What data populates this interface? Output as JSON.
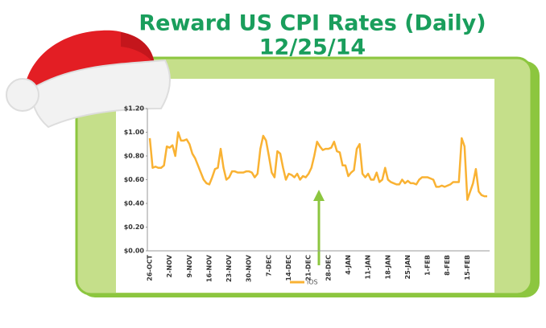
{
  "chart_data": {
    "type": "line",
    "title": "Reward US CPI Rates (Daily)",
    "subtitle": "12/25/14",
    "categories": [
      "26-OCT",
      null,
      null,
      null,
      null,
      null,
      null,
      "2-NOV",
      null,
      null,
      null,
      null,
      null,
      null,
      "9-NOV",
      null,
      null,
      null,
      null,
      null,
      null,
      "16-NOV",
      null,
      null,
      null,
      null,
      null,
      null,
      "23-NOV",
      null,
      null,
      null,
      null,
      null,
      null,
      "30-NOV",
      null,
      null,
      null,
      null,
      null,
      null,
      "7-DEC",
      null,
      null,
      null,
      null,
      null,
      null,
      "14-DEC",
      null,
      null,
      null,
      null,
      null,
      null,
      "21-DEC",
      null,
      null,
      null,
      null,
      null,
      null,
      "28-DEC",
      null,
      null,
      null,
      null,
      null,
      null,
      "4-JAN",
      null,
      null,
      null,
      null,
      null,
      null,
      "11-JAN",
      null,
      null,
      null,
      null,
      null,
      null,
      "18-JAN",
      null,
      null,
      null,
      null,
      null,
      null,
      "25-JAN",
      null,
      null,
      null,
      null,
      null,
      null,
      "1-FEB",
      null,
      null,
      null,
      null,
      null,
      null,
      "8-FEB",
      null,
      null,
      null,
      null,
      null,
      null,
      "15-FEB",
      null,
      null,
      null,
      null,
      null,
      null,
      null
    ],
    "series": [
      {
        "name": "iOS",
        "color": "#f9b233",
        "values": [
          0.95,
          0.7,
          0.71,
          0.7,
          0.7,
          0.72,
          0.88,
          0.87,
          0.89,
          0.8,
          1.0,
          0.93,
          0.93,
          0.94,
          0.9,
          0.82,
          0.78,
          0.72,
          0.66,
          0.6,
          0.57,
          0.56,
          0.62,
          0.69,
          0.7,
          0.86,
          0.7,
          0.6,
          0.62,
          0.67,
          0.67,
          0.66,
          0.66,
          0.66,
          0.67,
          0.67,
          0.66,
          0.62,
          0.65,
          0.86,
          0.97,
          0.93,
          0.8,
          0.66,
          0.62,
          0.84,
          0.82,
          0.7,
          0.6,
          0.65,
          0.64,
          0.62,
          0.65,
          0.6,
          0.63,
          0.62,
          0.65,
          0.7,
          0.8,
          0.92,
          0.88,
          0.85,
          0.86,
          0.86,
          0.87,
          0.92,
          0.84,
          0.83,
          0.72,
          0.72,
          0.63,
          0.66,
          0.68,
          0.86,
          0.9,
          0.65,
          0.62,
          0.65,
          0.6,
          0.6,
          0.66,
          0.58,
          0.6,
          0.7,
          0.6,
          0.58,
          0.57,
          0.56,
          0.56,
          0.6,
          0.57,
          0.59,
          0.57,
          0.57,
          0.56,
          0.6,
          0.62,
          0.62,
          0.62,
          0.61,
          0.6,
          0.54,
          0.54,
          0.55,
          0.54,
          0.55,
          0.56,
          0.58,
          0.58,
          0.58,
          0.95,
          0.88,
          0.43,
          0.5,
          0.57,
          0.69,
          0.5,
          0.47,
          0.46,
          0.46
        ]
      }
    ],
    "ylim": [
      0,
      1.2
    ],
    "yticks": [
      {
        "value": 0,
        "label": "$0.00"
      },
      {
        "value": 0.2,
        "label": "$0.20"
      },
      {
        "value": 0.4,
        "label": "$0.40"
      },
      {
        "value": 0.6,
        "label": "$0.60"
      },
      {
        "value": 0.8,
        "label": "$0.80"
      },
      {
        "value": 1.0,
        "label": "$1.00"
      },
      {
        "value": 1.2,
        "label": "$1.20"
      }
    ],
    "legend": "bottom"
  }
}
